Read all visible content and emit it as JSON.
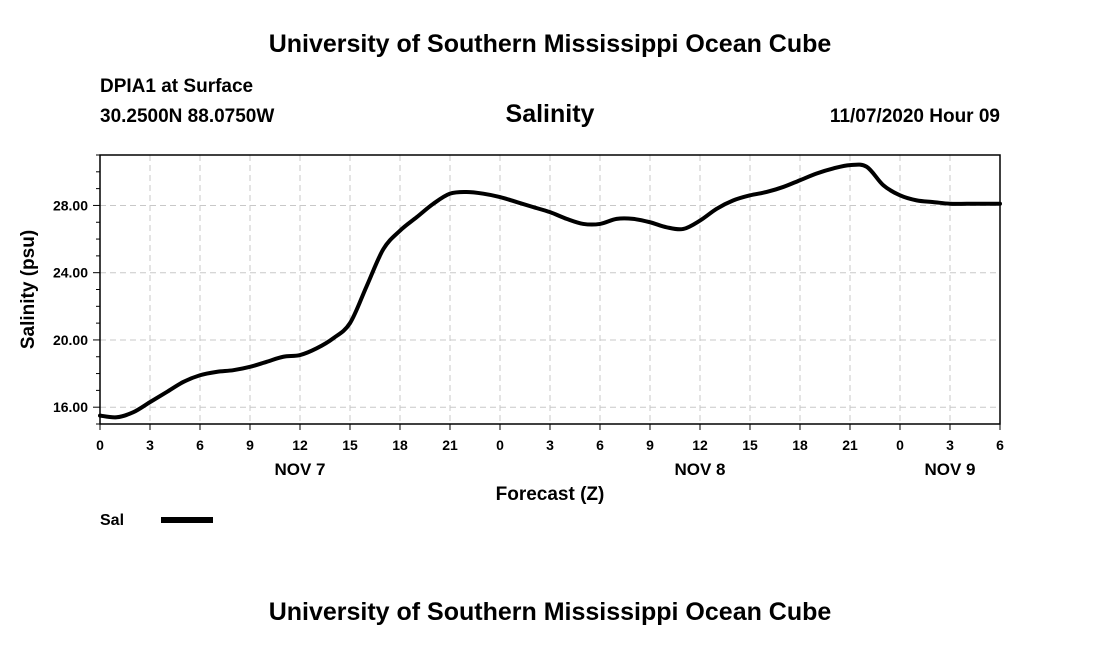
{
  "header": {
    "title": "University of Southern Mississippi Ocean Cube",
    "station": "DPIA1 at Surface",
    "coordinates": "30.2500N 88.0750W",
    "variable": "Salinity",
    "datetime": "11/07/2020 Hour 09"
  },
  "footer": {
    "title": "University of Southern Mississippi Ocean Cube"
  },
  "chart_data": {
    "type": "line",
    "title": "Salinity",
    "xlabel": "Forecast (Z)",
    "ylabel": "Salinity (psu)",
    "x_range_hours": [
      0,
      54
    ],
    "ylim": [
      15,
      31
    ],
    "yticks": [
      16,
      20,
      24,
      28
    ],
    "ytick_labels": [
      "16.00",
      "20.00",
      "24.00",
      "28.00"
    ],
    "xtick_labels": [
      "0",
      "3",
      "6",
      "9",
      "12",
      "15",
      "18",
      "21",
      "0",
      "3",
      "6",
      "9",
      "12",
      "15",
      "18",
      "21",
      "0",
      "3",
      "6"
    ],
    "date_labels": [
      {
        "label": "NOV 7",
        "hour": 12
      },
      {
        "label": "NOV 8",
        "hour": 36
      },
      {
        "label": "NOV 9",
        "hour": 51
      }
    ],
    "grid": true,
    "legend": {
      "position": "bottom-left",
      "entries": [
        "Sal"
      ]
    },
    "series": [
      {
        "name": "Sal",
        "color": "#000000",
        "x": [
          0,
          1,
          2,
          3,
          4,
          5,
          6,
          7,
          8,
          9,
          10,
          11,
          12,
          13,
          14,
          15,
          16,
          17,
          18,
          19,
          20,
          21,
          22,
          23,
          24,
          25,
          26,
          27,
          28,
          29,
          30,
          31,
          32,
          33,
          34,
          35,
          36,
          37,
          38,
          39,
          40,
          41,
          42,
          43,
          44,
          45,
          46,
          47,
          48,
          49,
          50,
          51,
          52,
          53,
          54
        ],
        "values": [
          15.5,
          15.4,
          15.7,
          16.3,
          16.9,
          17.5,
          17.9,
          18.1,
          18.2,
          18.4,
          18.7,
          19.0,
          19.1,
          19.5,
          20.1,
          21.0,
          23.2,
          25.4,
          26.5,
          27.3,
          28.1,
          28.7,
          28.8,
          28.7,
          28.5,
          28.2,
          27.9,
          27.6,
          27.2,
          26.9,
          26.9,
          27.2,
          27.2,
          27.0,
          26.7,
          26.6,
          27.1,
          27.8,
          28.3,
          28.6,
          28.8,
          29.1,
          29.5,
          29.9,
          30.2,
          30.4,
          30.3,
          29.2,
          28.6,
          28.3,
          28.2,
          28.1,
          28.1,
          28.1,
          28.1
        ]
      }
    ]
  }
}
